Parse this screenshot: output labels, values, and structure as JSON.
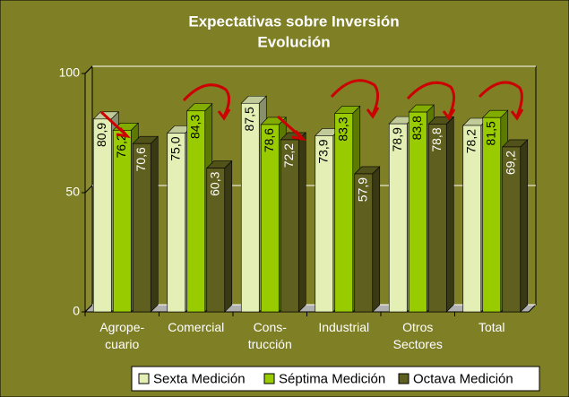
{
  "chart_data": {
    "type": "bar",
    "title": "Expectativas sobre Inversión",
    "subtitle": "Evolución",
    "categories": [
      "Agrope-\ncuario",
      "Comercial",
      "Cons-\ntrucción",
      "Industrial",
      "Otros\nSectores",
      "Total"
    ],
    "series": [
      {
        "name": "Sexta Medición",
        "color": "#e3efb4",
        "values": [
          80.9,
          75.0,
          87.5,
          73.9,
          78.9,
          78.2
        ],
        "value_labels": [
          "80,9",
          "75,0",
          "87,5",
          "73,9",
          "78,9",
          "78,2"
        ]
      },
      {
        "name": "Séptima Medición",
        "color": "#99cc00",
        "values": [
          76.2,
          84.3,
          78.6,
          83.3,
          83.8,
          81.5
        ],
        "value_labels": [
          "76,2",
          "84,3",
          "78,6",
          "83,3",
          "83,8",
          "81,5"
        ]
      },
      {
        "name": "Octava Medición",
        "color": "#5f5f1f",
        "values": [
          70.6,
          60.3,
          72.2,
          57.9,
          78.8,
          69.2
        ],
        "value_labels": [
          "70,6",
          "60,3",
          "72,2",
          "57,9",
          "78,8",
          "69,2"
        ]
      }
    ],
    "ylim": [
      0,
      100
    ],
    "yticks": [
      0,
      50,
      100
    ],
    "grid": true,
    "legend": "bottom"
  }
}
